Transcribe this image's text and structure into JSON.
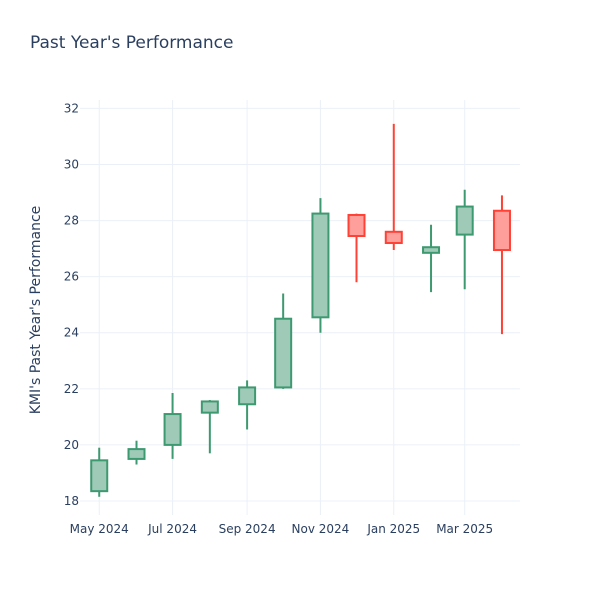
{
  "chart_data": {
    "type": "candlestick",
    "title": "Past Year's Performance",
    "xlabel": "",
    "ylabel": "KMI's Past Year's Performance",
    "ylim": [
      17.5,
      32.3
    ],
    "y_ticks": [
      18,
      20,
      22,
      24,
      26,
      28,
      30,
      32
    ],
    "x_ticks": [
      {
        "label": "May 2024",
        "date": "2024-05-01"
      },
      {
        "label": "Jul 2024",
        "date": "2024-07-01"
      },
      {
        "label": "Sep 2024",
        "date": "2024-09-01"
      },
      {
        "label": "Nov 2024",
        "date": "2024-11-01"
      },
      {
        "label": "Jan 2025",
        "date": "2025-01-01"
      },
      {
        "label": "Mar 2025",
        "date": "2025-03-01"
      }
    ],
    "x_range": [
      "2024-04-15",
      "2025-04-16"
    ],
    "grid": true,
    "increasing_color": "#3d9970",
    "increasing_fill": "#9ecab7",
    "decreasing_color": "#ff4136",
    "decreasing_fill": "#ff9f9b",
    "candles": [
      {
        "date": "2024-05-01",
        "open": 18.35,
        "high": 19.9,
        "low": 18.15,
        "close": 19.45
      },
      {
        "date": "2024-06-01",
        "open": 19.5,
        "high": 20.15,
        "low": 19.3,
        "close": 19.85
      },
      {
        "date": "2024-07-01",
        "open": 20.0,
        "high": 21.85,
        "low": 19.5,
        "close": 21.1
      },
      {
        "date": "2024-08-01",
        "open": 21.15,
        "high": 21.6,
        "low": 19.7,
        "close": 21.55
      },
      {
        "date": "2024-09-01",
        "open": 21.45,
        "high": 22.3,
        "low": 20.55,
        "close": 22.05
      },
      {
        "date": "2024-10-01",
        "open": 22.05,
        "high": 25.4,
        "low": 22.0,
        "close": 24.5
      },
      {
        "date": "2024-11-01",
        "open": 24.55,
        "high": 28.8,
        "low": 24.0,
        "close": 28.25
      },
      {
        "date": "2024-12-01",
        "open": 28.2,
        "high": 28.25,
        "low": 25.8,
        "close": 27.45
      },
      {
        "date": "2025-01-01",
        "open": 27.6,
        "high": 31.45,
        "low": 26.95,
        "close": 27.2
      },
      {
        "date": "2025-02-01",
        "open": 26.85,
        "high": 27.85,
        "low": 25.45,
        "close": 27.05
      },
      {
        "date": "2025-03-01",
        "open": 27.5,
        "high": 29.1,
        "low": 25.55,
        "close": 28.5
      },
      {
        "date": "2025-04-01",
        "open": 28.35,
        "high": 28.9,
        "low": 23.95,
        "close": 26.95
      }
    ]
  }
}
